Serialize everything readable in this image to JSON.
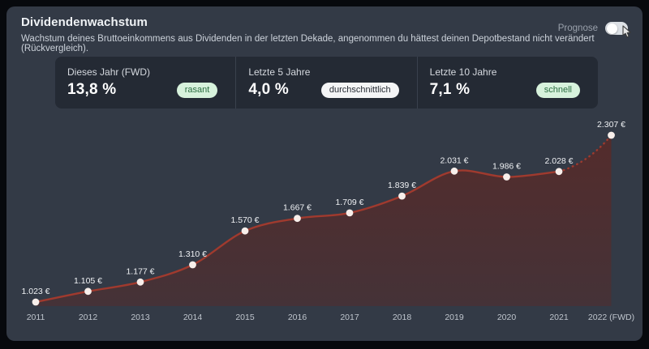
{
  "header": {
    "title": "Dividendenwachstum",
    "subtitle": "Wachstum deines Bruttoeinkommens aus Dividenden in der letzten Dekade, angenommen du hättest deinen Depotbestand nicht verändert (Rückvergleich).",
    "prognose_label": "Prognose",
    "prognose_toggle_state": "on"
  },
  "stats": [
    {
      "label": "Dieses Jahr (FWD)",
      "value": "13,8 %",
      "badge": "rasant",
      "badge_style": "green"
    },
    {
      "label": "Letzte 5 Jahre",
      "value": "4,0 %",
      "badge": "durchschnittlich",
      "badge_style": "white"
    },
    {
      "label": "Letzte 10 Jahre",
      "value": "7,1 %",
      "badge": "schnell",
      "badge_style": "green"
    }
  ],
  "colors": {
    "page_bg": "#07090d",
    "card_bg": "#333a46",
    "stats_bg": "#242a34",
    "badge_green_bg": "#d7f2dc",
    "badge_green_text": "#2b6e41",
    "badge_white_bg": "#f4f5f6",
    "line": "#a03a2e",
    "area": "#6e2016",
    "dot": "#f8efeb"
  },
  "chart_data": {
    "type": "line",
    "title": "",
    "xlabel": "",
    "ylabel": "",
    "categories": [
      "2011",
      "2012",
      "2013",
      "2014",
      "2015",
      "2016",
      "2017",
      "2018",
      "2019",
      "2020",
      "2021",
      "2022 (FWD)"
    ],
    "values": [
      1023,
      1105,
      1177,
      1310,
      1570,
      1667,
      1709,
      1839,
      2031,
      1986,
      2028,
      2307
    ],
    "point_labels": [
      "1.023 €",
      "1.105 €",
      "1.177 €",
      "1.310 €",
      "1.570 €",
      "1.667 €",
      "1.709 €",
      "1.839 €",
      "2.031 €",
      "1.986 €",
      "2.028 €",
      "2.307 €"
    ],
    "unit": "€",
    "forecast_start_index": 10,
    "forecast_segment_style": "dotted",
    "ylim": [
      950,
      2450
    ],
    "grid": false,
    "legend": false,
    "line_color": "#a03a2e",
    "area_color": "#6e2016",
    "dot_color": "#f8efeb"
  }
}
